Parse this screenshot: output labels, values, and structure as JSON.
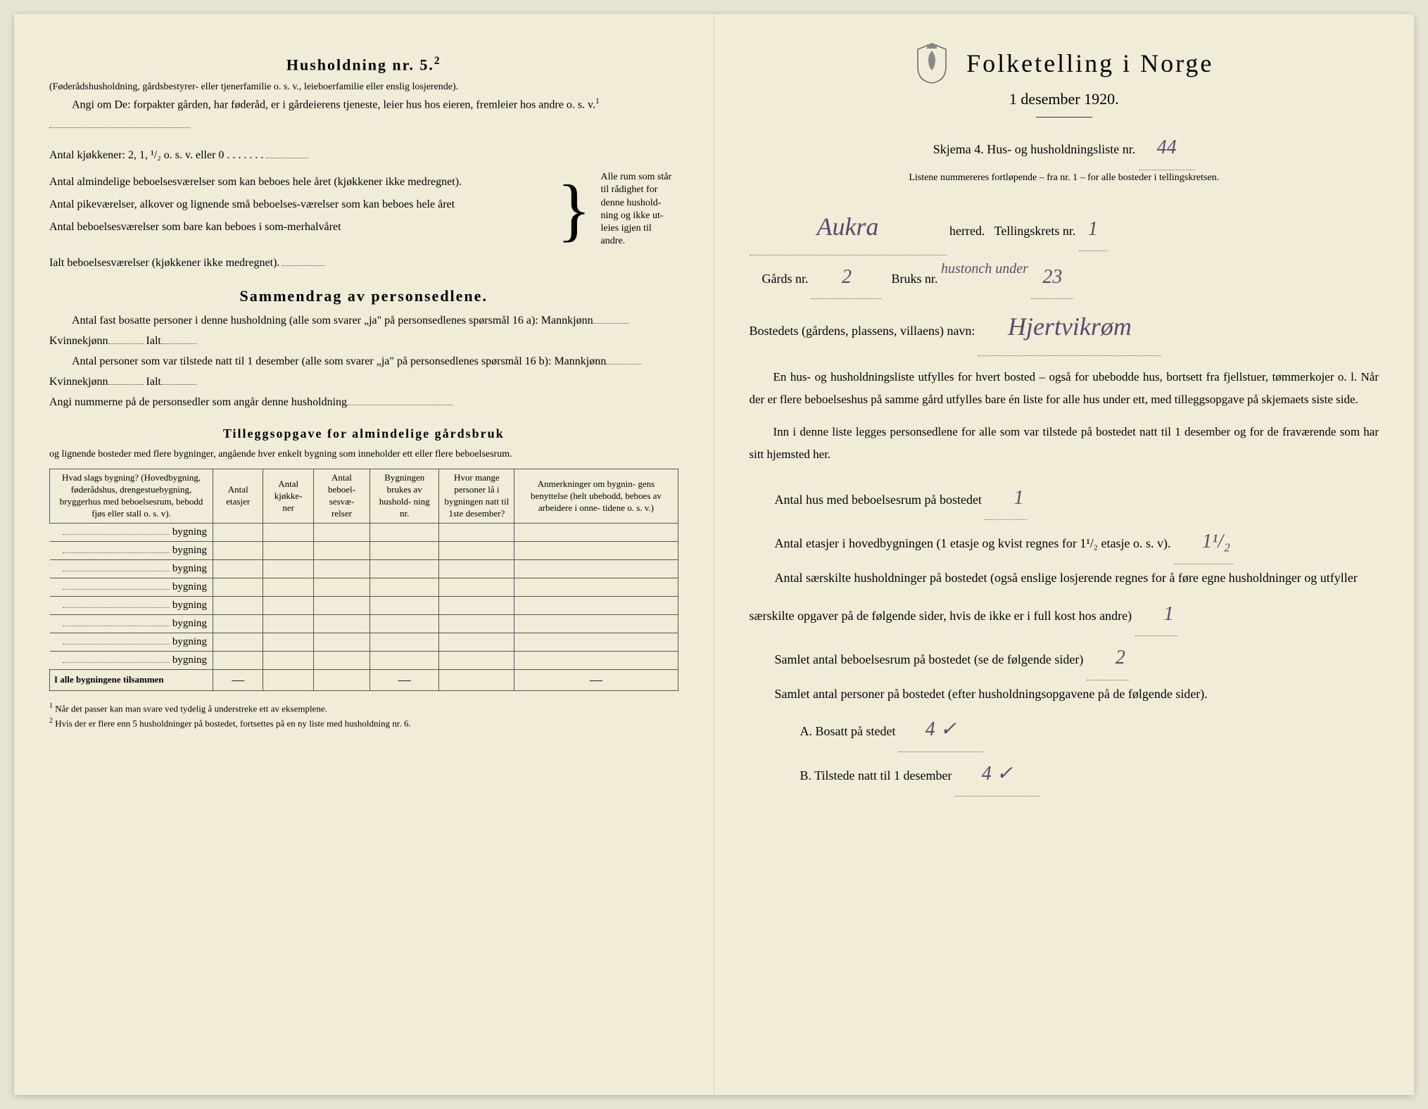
{
  "left": {
    "heading": "Husholdning nr. 5.",
    "heading_sup": "2",
    "sub1": "(Føderådshusholdning, gårdsbestyrer- eller tjenerfamilie o. s. v., leieboerfamilie eller enslig losjerende).",
    "sub2_prefix": "Angi om De:",
    "sub2": "forpakter gården, har føderåd, er i gårdeierens tjeneste, leier hus hos eieren, fremleier hos andre o. s. v.",
    "sub2_sup": "1",
    "kitchen_line": "Antal kjøkkener: 2, 1, ¹/₂ o. s. v. eller 0",
    "brace_items": [
      "Antal almindelige beboelsesværelser som kan beboes hele året (kjøkkener ikke medregnet).",
      "Antal pikeværelser, alkover og lignende små beboelses-værelser som kan beboes hele året",
      "Antal beboelsesværelser som bare kan beboes i som-merhalvåret"
    ],
    "brace_right": "Alle rum som står til rådighet for denne hushold-ning og ikke ut-leies igjen til andre.",
    "ialt_line": "Ialt beboelsesværelser (kjøkkener ikke medregnet).",
    "sammen_head": "Sammendrag av personsedlene.",
    "sammen_l1": "Antal fast bosatte personer i denne husholdning (alle som svarer „ja\" på personsedlenes spørsmål 16 a): Mannkjønn",
    "sammen_l1b": "Kvinnekjønn",
    "sammen_l1c": "Ialt",
    "sammen_l2": "Antal personer som var tilstede natt til 1 desember (alle som svarer „ja\" på personsedlenes spørsmål 16 b): Mannkjønn",
    "sammen_l2b": "Kvinnekjønn",
    "sammen_l2c": "Ialt",
    "sammen_l3": "Angi nummerne på de personsedler som angår denne husholdning",
    "tillegg_head": "Tilleggsopgave for almindelige gårdsbruk",
    "tillegg_sub": "og lignende bosteder med flere bygninger, angående hver enkelt bygning som inneholder ett eller flere beboelsesrum.",
    "table": {
      "headers": [
        "Hvad slags bygning?\n(Hovedbygning, føderådshus, drengestuebygning, bryggerhus med beboelsesrum, bebodd fjøs eller stall o. s. v).",
        "Antal\netasjer",
        "Antal\nkjøkke-\nner",
        "Antal\nbeboel-\nsesvæ-\nrelser",
        "Bygningen\nbrukes av\nhushold-\nning nr.",
        "Hvor mange\npersoner lå\ni bygningen\nnatt til 1ste\ndesember?",
        "Anmerkninger om bygnin-\ngens benyttelse (helt ubebodd,\nbeboes av arbeidere i onne-\ntidene o. s. v.)"
      ],
      "bygning_label": "bygning",
      "row_count": 8,
      "total_label": "I alle bygningene tilsammen",
      "dashes": [
        "—",
        "",
        "",
        "—",
        "",
        "—"
      ]
    },
    "footnotes": [
      "Når det passer kan man svare ved tydelig å understreke ett av eksemplene.",
      "Hvis der er flere enn 5 husholdninger på bostedet, fortsettes på en ny liste med husholdning nr. 6."
    ]
  },
  "right": {
    "title": "Folketelling i Norge",
    "date": "1 desember 1920.",
    "skjema": "Skjema 4.  Hus- og husholdningsliste nr.",
    "skjema_val": "44",
    "listene": "Listene nummereres fortløpende – fra nr. 1 – for alle bosteder i tellingskretsen.",
    "herred_val": "Aukra",
    "herred_lbl": "herred.",
    "tellingskrets_lbl": "Tellingskrets nr.",
    "tellingskrets_val": "1",
    "gards_lbl": "Gårds nr.",
    "gards_val": "2",
    "bruks_lbl": "Bruks nr.",
    "bruks_note": "hustonch under",
    "bruks_val": "23",
    "bosted_lbl": "Bostedets (gårdens, plassens, villaens) navn:",
    "bosted_val": "Hjertvikrøm",
    "para1": "En hus- og husholdningsliste utfylles for hvert bosted – også for ubebodde hus, bortsett fra fjellstuer, tømmerkojer o. l. Når der er flere beboelseshus på samme gård utfylles bare én liste for alle hus under ett, med tilleggsopgave på skjemaets siste side.",
    "para2": "Inn i denne liste legges personsedlene for alle som var tilstede på bostedet natt til 1 desember og for de fraværende som har sitt hjemsted her.",
    "q1": "Antal hus med beboelsesrum på bostedet",
    "q1_val": "1",
    "q2a": "Antal etasjer i hovedbygningen (1 etasje og kvist regnes for 1¹/₂ etasje o. s. v).",
    "q2_val": "1¹/₂",
    "q3": "Antal særskilte husholdninger på bostedet (også enslige losjerende regnes for å føre egne husholdninger og utfyller særskilte opgaver på de følgende sider, hvis de ikke er i full kost hos andre)",
    "q3_val": "1",
    "q4": "Samlet antal beboelsesrum på bostedet (se de følgende sider)",
    "q4_val": "2",
    "q5": "Samlet antal personer på bostedet (efter husholdningsopgavene på de følgende sider).",
    "q5a_lbl": "A.  Bosatt på stedet",
    "q5a_val": "4 ✓",
    "q5b_lbl": "B.  Tilstede natt til 1 desember",
    "q5b_val": "4 ✓"
  }
}
